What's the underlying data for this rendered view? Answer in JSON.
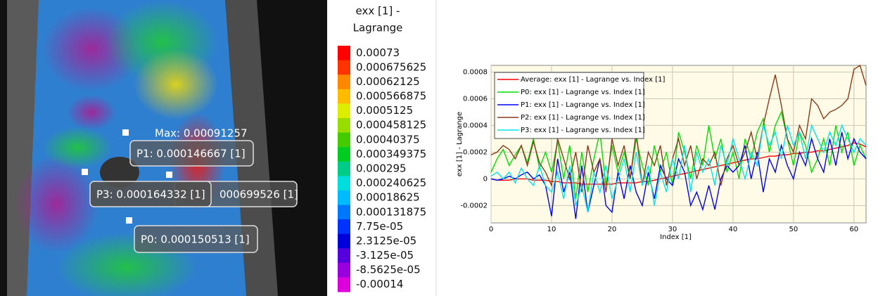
{
  "image": {
    "max_label": "Max: 0.00091257",
    "point_labels": [
      "P1: 0.000146667 [1]",
      "000699526 [1]",
      "P3: 0.000164332 [1]",
      "P0: 0.000150513 [1]"
    ]
  },
  "colorbar": {
    "title_lines": [
      "exx [1] -",
      "Lagrange"
    ],
    "ticks": [
      0.00073,
      0.000675625,
      0.00062125,
      0.000566875,
      0.0005125,
      0.000458125,
      0.00040375,
      0.000349375,
      0.000295,
      0.000240625,
      0.00018625,
      0.000131875,
      {
        "value": 7.75e-05,
        "label": "7.75e-05"
      },
      {
        "value": 2.3125e-05,
        "label": "2.3125e-05"
      },
      {
        "value": -3.125e-05,
        "label": "-3.125e-05"
      },
      {
        "value": -8.5625e-05,
        "label": "-8.5625e-05"
      },
      -0.00014
    ]
  },
  "chart_data": {
    "type": "line",
    "x_label": "Index [1]",
    "y_label": "exx [1] - Lagrange",
    "xlim": [
      0,
      62
    ],
    "ylim": [
      -0.00033,
      0.00085
    ],
    "xticks": [
      0,
      10,
      20,
      30,
      40,
      50,
      60
    ],
    "yticks": [
      -0.0002,
      0,
      0.0002,
      0.0004,
      0.0006,
      0.0008
    ],
    "grid": true,
    "legend": "upper left",
    "x": [
      0,
      1,
      2,
      3,
      4,
      5,
      6,
      7,
      8,
      9,
      10,
      11,
      12,
      13,
      14,
      15,
      16,
      17,
      18,
      19,
      20,
      21,
      22,
      23,
      24,
      25,
      26,
      27,
      28,
      29,
      30,
      31,
      32,
      33,
      34,
      35,
      36,
      37,
      38,
      39,
      40,
      41,
      42,
      43,
      44,
      45,
      46,
      47,
      48,
      49,
      50,
      51,
      52,
      53,
      54,
      55,
      56,
      57,
      58,
      59,
      60,
      61,
      62
    ],
    "series": [
      {
        "name": "Average: exx [1] - Lagrange vs. Index [1]",
        "color": "#ff0000",
        "values": [
          0,
          -1e-05,
          -1e-05,
          -1e-05,
          0,
          0,
          0,
          -1e-05,
          -1e-05,
          -1e-05,
          -2e-05,
          -2e-05,
          -3e-05,
          -3e-05,
          -3e-05,
          -4e-05,
          -4e-05,
          -4e-05,
          -4e-05,
          -4e-05,
          -4e-05,
          -3e-05,
          -3e-05,
          -3e-05,
          -3e-05,
          -2e-05,
          -2e-05,
          -1e-05,
          0,
          1e-05,
          2e-05,
          3e-05,
          4e-05,
          5e-05,
          6e-05,
          7e-05,
          8e-05,
          9e-05,
          0.0001,
          0.00011,
          0.00012,
          0.00013,
          0.00014,
          0.00015,
          0.00015,
          0.00016,
          0.00017,
          0.00017,
          0.00018,
          0.00018,
          0.00019,
          0.00019,
          0.0002,
          0.0002,
          0.00021,
          0.00021,
          0.00022,
          0.00023,
          0.00024,
          0.00025,
          0.00027,
          0.00026,
          0.00024
        ]
      },
      {
        "name": "P0: exx [1] - Lagrange vs. Index [1]",
        "color": "#00e000",
        "values": [
          5e-05,
          0.00015,
          0.00022,
          0.0001,
          0.00018,
          0.00025,
          0.00012,
          0.0003,
          8e-05,
          0.0002,
          5e-05,
          0.00028,
          0,
          0.00025,
          -0.00015,
          0.0002,
          -0.0001,
          0.00015,
          0.00035,
          -5e-05,
          0.00025,
          5e-05,
          0.0002,
          0,
          0.0003,
          0.0001,
          -5e-05,
          0.00025,
          5e-05,
          0.0002,
          -5e-05,
          0.00035,
          0.0002,
          0,
          0.00025,
          0.0001,
          0.0004,
          0.00015,
          0.0003,
          5e-05,
          0.0002,
          0,
          0.0003,
          0.00015,
          0.00035,
          0.00045,
          0.0002,
          0.0004,
          0.0005,
          0.0003,
          0.0001,
          0.00035,
          0.00025,
          5e-05,
          0.00015,
          0.0003,
          0.0001,
          0.0004,
          0.0002,
          0.00035,
          0.0001,
          0.00025,
          0.00015
        ]
      },
      {
        "name": "P1: exx [1] - Lagrange vs. Index [1]",
        "color": "#0000ff",
        "values": [
          0,
          -1e-05,
          0,
          2e-05,
          0,
          3e-05,
          5e-05,
          0,
          3e-05,
          -5e-05,
          -0.00028,
          0.00015,
          -0.0001,
          5e-05,
          -0.0003,
          0.0001,
          -0.00025,
          -5e-05,
          0.00015,
          -0.0002,
          -0.00025,
          5e-05,
          -0.00015,
          0.0001,
          -0.0001,
          -0.0002,
          5e-05,
          -0.00015,
          0.0001,
          0,
          -5e-05,
          0.00015,
          5e-05,
          -0.0002,
          -0.0001,
          -0.00023,
          -5e-05,
          -0.00023,
          0,
          0.0001,
          5e-05,
          0.0001,
          0.00025,
          0,
          0.0002,
          -0.0001,
          0.00015,
          5e-05,
          0.00025,
          0.0001,
          0,
          0.0002,
          0.0001,
          0.0003,
          0.00015,
          5e-05,
          0.0003,
          0.0001,
          0.00035,
          0.00015,
          0.0003,
          0.0002,
          0.00015
        ]
      },
      {
        "name": "P2: exx [1] - Lagrange vs. Index [1]",
        "color": "#8b3a1a",
        "values": [
          0.00018,
          0.0002,
          0.00025,
          0.00022,
          0.00015,
          0.00025,
          0.0001,
          0.00028,
          0.00012,
          5e-05,
          -5e-05,
          0.0003,
          0.00015,
          0,
          0.0002,
          -0.0001,
          0.00025,
          5e-05,
          0.00015,
          -0.0001,
          0.0003,
          0.0001,
          0.00025,
          0,
          0.00035,
          -5e-05,
          0.0002,
          0.0001,
          0.00025,
          -5e-05,
          0.00015,
          0.0003,
          0.0001,
          0.00025,
          0,
          0.00015,
          0.0001,
          0.0002,
          -5e-05,
          0.00015,
          0.00025,
          0.0001,
          0.0002,
          0.00035,
          0.00015,
          0.0004,
          0.0006,
          0.00078,
          0.00055,
          0.0003,
          0.0002,
          0.0004,
          0.0003,
          0.0006,
          0.00055,
          0.00045,
          0.0005,
          0.00052,
          0.00055,
          0.0006,
          0.00082,
          0.00085,
          0.0007
        ]
      },
      {
        "name": "P3: exx [1] - Lagrange vs. Index [1]",
        "color": "#00e5ee",
        "values": [
          2e-05,
          5e-05,
          0,
          5e-05,
          -3e-05,
          8e-05,
          0,
          -5e-05,
          0.0001,
          -5e-05,
          -0.0001,
          5e-05,
          -0.00015,
          0.0001,
          -0.0002,
          -5e-05,
          -0.00025,
          5e-05,
          -0.0001,
          0.0001,
          -0.00015,
          0,
          0.00015,
          -0.0001,
          0.0002,
          -5e-05,
          0.0001,
          -0.0002,
          5e-05,
          -0.0001,
          0.00015,
          0,
          0.00025,
          -0.0001,
          0.0002,
          5e-05,
          0.00015,
          -5e-05,
          0.00025,
          0.0001,
          0.0003,
          0.00015,
          0,
          0.0002,
          0.0001,
          0.0004,
          0.00025,
          0.00035,
          0.00015,
          0.0004,
          0.00025,
          0.00035,
          0.00015,
          0.0004,
          0.0003,
          0.0002,
          0.00035,
          0.00025,
          0.0004,
          0.0003,
          0.0002,
          0.0003,
          0.00025
        ]
      }
    ]
  }
}
